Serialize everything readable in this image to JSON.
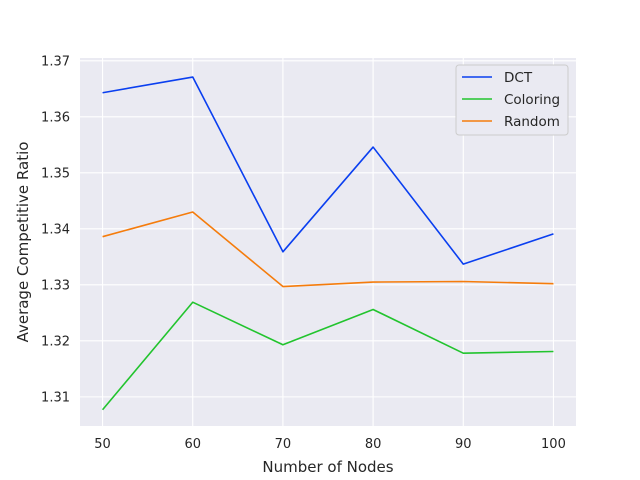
{
  "chart_data": {
    "type": "line",
    "title": "",
    "xlabel": "Number of Nodes",
    "ylabel": "Average Competitive Ratio",
    "x": [
      50,
      60,
      70,
      80,
      90,
      100
    ],
    "xlim": [
      47.5,
      102.5
    ],
    "ylim": [
      1.3048,
      1.3705
    ],
    "xticks": [
      "50",
      "60",
      "70",
      "80",
      "90",
      "100"
    ],
    "yticks": [
      "1.31",
      "1.32",
      "1.33",
      "1.34",
      "1.35",
      "1.36",
      "1.37"
    ],
    "grid": true,
    "legend_position": "top-right",
    "series": [
      {
        "name": "DCT",
        "color": "#0a3ff0",
        "values": [
          1.3643,
          1.3671,
          1.3359,
          1.3546,
          1.3337,
          1.3391
        ]
      },
      {
        "name": "Coloring",
        "color": "#22c42e",
        "values": [
          1.3077,
          1.3269,
          1.3193,
          1.3256,
          1.3178,
          1.3181
        ]
      },
      {
        "name": "Random",
        "color": "#f57c0c",
        "values": [
          1.3386,
          1.343,
          1.3297,
          1.3305,
          1.3306,
          1.3302
        ]
      }
    ]
  }
}
